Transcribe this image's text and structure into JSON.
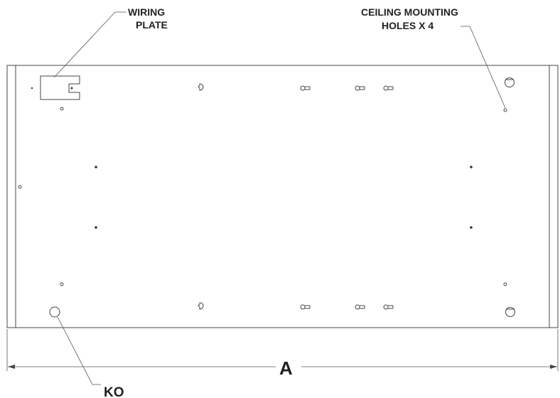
{
  "labels": {
    "wiring_plate_line1": "WIRING",
    "wiring_plate_line2": "PLATE",
    "ceiling_line1": "CEILING MOUNTING",
    "ceiling_line2": "HOLES X 4",
    "dimension": "A",
    "knockout": "KO"
  }
}
